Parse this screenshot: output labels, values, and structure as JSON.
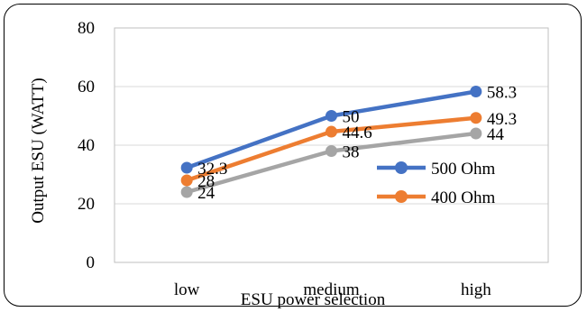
{
  "chart_data": {
    "type": "line",
    "title": "",
    "xlabel": "ESU power selection",
    "ylabel": "Output ESU (WATT)",
    "categories": [
      "low",
      "medium",
      "high"
    ],
    "ylim": [
      0,
      80
    ],
    "yticks": [
      0,
      20,
      40,
      60,
      80
    ],
    "grid": true,
    "legend_position": "lower-right",
    "series": [
      {
        "name": "500 Ohm",
        "color": "#4472C4",
        "values": [
          32.3,
          50,
          58.3
        ],
        "labels": [
          "32.3",
          "50",
          "58.3"
        ],
        "in_legend": true
      },
      {
        "name": "400 Ohm",
        "color": "#ED7D31",
        "values": [
          28,
          44.6,
          49.3
        ],
        "labels": [
          "28",
          "44.6",
          "49.3"
        ],
        "in_legend": true
      },
      {
        "name": "",
        "color": "#A5A5A5",
        "values": [
          24,
          38,
          44
        ],
        "labels": [
          "24",
          "38",
          "44"
        ],
        "in_legend": false
      }
    ]
  }
}
